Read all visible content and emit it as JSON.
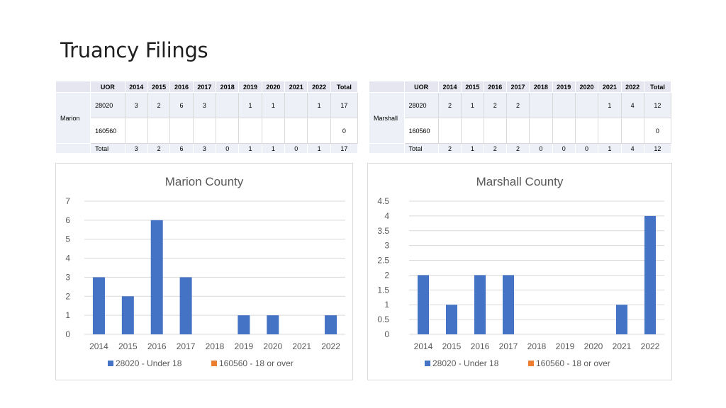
{
  "slide": {
    "title": "Truancy Filings"
  },
  "tables": [
    {
      "county": "Marion",
      "headers": [
        "UOR",
        "2014",
        "2015",
        "2016",
        "2017",
        "2018",
        "2019",
        "2020",
        "2021",
        "2022",
        "Total"
      ],
      "rows": [
        [
          "28020",
          "3",
          "2",
          "6",
          "3",
          "",
          "1",
          "1",
          "",
          "1",
          "17"
        ],
        [
          "160560",
          "",
          "",
          "",
          "",
          "",
          "",
          "",
          "",
          "",
          "0"
        ],
        [
          "Total",
          "3",
          "2",
          "6",
          "3",
          "0",
          "1",
          "1",
          "0",
          "1",
          "17"
        ]
      ]
    },
    {
      "county": "Marshall",
      "headers": [
        "UOR",
        "2014",
        "2015",
        "2016",
        "2017",
        "2018",
        "2019",
        "2020",
        "2021",
        "2022",
        "Total"
      ],
      "rows": [
        [
          "28020",
          "2",
          "1",
          "2",
          "2",
          "",
          "",
          "",
          "1",
          "4",
          "12"
        ],
        [
          "160560",
          "",
          "",
          "",
          "",
          "",
          "",
          "",
          "",
          "",
          "0"
        ],
        [
          "Total",
          "2",
          "1",
          "2",
          "2",
          "0",
          "0",
          "0",
          "1",
          "4",
          "12"
        ]
      ]
    }
  ],
  "chart_data": [
    {
      "type": "bar",
      "title": "Marion County",
      "categories": [
        "2014",
        "2015",
        "2016",
        "2017",
        "2018",
        "2019",
        "2020",
        "2021",
        "2022"
      ],
      "series": [
        {
          "name": "28020 - Under 18",
          "color": "#4472c4",
          "values": [
            3,
            2,
            6,
            3,
            0,
            1,
            1,
            0,
            1
          ]
        },
        {
          "name": "160560 - 18 or over",
          "color": "#ed7d31",
          "values": [
            0,
            0,
            0,
            0,
            0,
            0,
            0,
            0,
            0
          ]
        }
      ],
      "ylim": [
        0,
        7
      ],
      "yticks": [
        "0",
        "1",
        "2",
        "3",
        "4",
        "5",
        "6",
        "7"
      ],
      "grid": true,
      "legend": "bottom"
    },
    {
      "type": "bar",
      "title": "Marshall County",
      "categories": [
        "2014",
        "2015",
        "2016",
        "2017",
        "2018",
        "2019",
        "2020",
        "2021",
        "2022"
      ],
      "series": [
        {
          "name": "28020 - Under 18",
          "color": "#4472c4",
          "values": [
            2,
            1,
            2,
            2,
            0,
            0,
            0,
            1,
            4
          ]
        },
        {
          "name": "160560 - 18 or over",
          "color": "#ed7d31",
          "values": [
            0,
            0,
            0,
            0,
            0,
            0,
            0,
            0,
            0
          ]
        }
      ],
      "ylim": [
        0,
        4.5
      ],
      "yticks": [
        "0",
        "0.5",
        "1",
        "1.5",
        "2",
        "2.5",
        "3",
        "3.5",
        "4",
        "4.5"
      ],
      "grid": true,
      "legend": "bottom"
    }
  ]
}
